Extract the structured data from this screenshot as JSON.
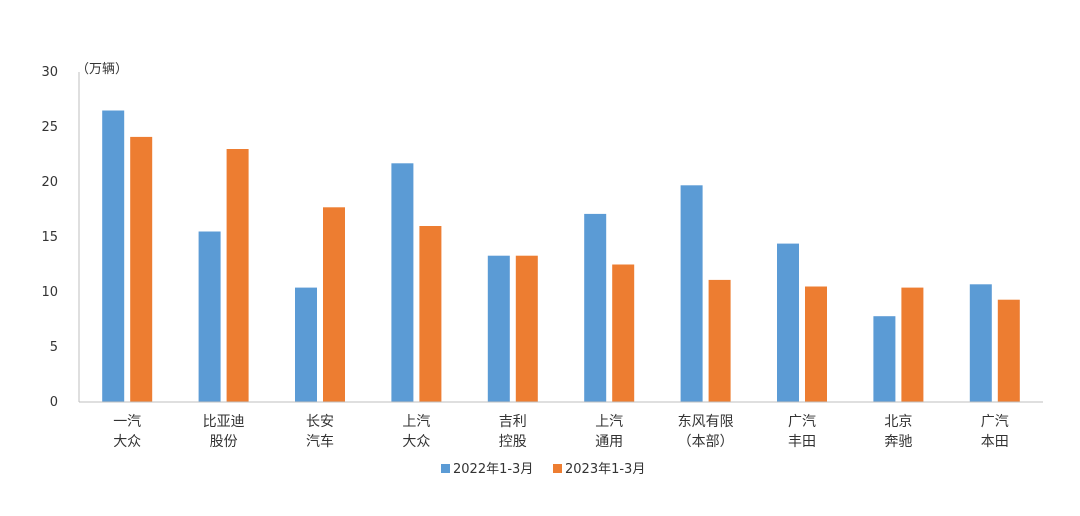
{
  "chart_data": {
    "type": "bar",
    "unit_label": "（万辆）",
    "categories": [
      [
        "一汽",
        "大众"
      ],
      [
        "比亚迪",
        "股份"
      ],
      [
        "长安",
        "汽车"
      ],
      [
        "上汽",
        "大众"
      ],
      [
        "吉利",
        "控股"
      ],
      [
        "上汽",
        "通用"
      ],
      [
        "东风有限",
        "（本部）"
      ],
      [
        "广汽",
        "丰田"
      ],
      [
        "北京",
        "奔驰"
      ],
      [
        "广汽",
        "本田"
      ]
    ],
    "series": [
      {
        "name": "2022年1-3月",
        "color": "#5B9BD5",
        "values": [
          26.5,
          15.5,
          10.4,
          21.7,
          13.3,
          17.1,
          19.7,
          14.4,
          7.8,
          10.7
        ]
      },
      {
        "name": "2023年1-3月",
        "color": "#ED7D31",
        "values": [
          24.1,
          23.0,
          17.7,
          16.0,
          13.3,
          12.5,
          11.1,
          10.5,
          10.4,
          9.3
        ]
      }
    ],
    "ylim": [
      0,
      30
    ],
    "yticks": [
      0,
      5,
      10,
      15,
      20,
      25,
      30
    ],
    "grid": false,
    "legend_position": "bottom"
  }
}
